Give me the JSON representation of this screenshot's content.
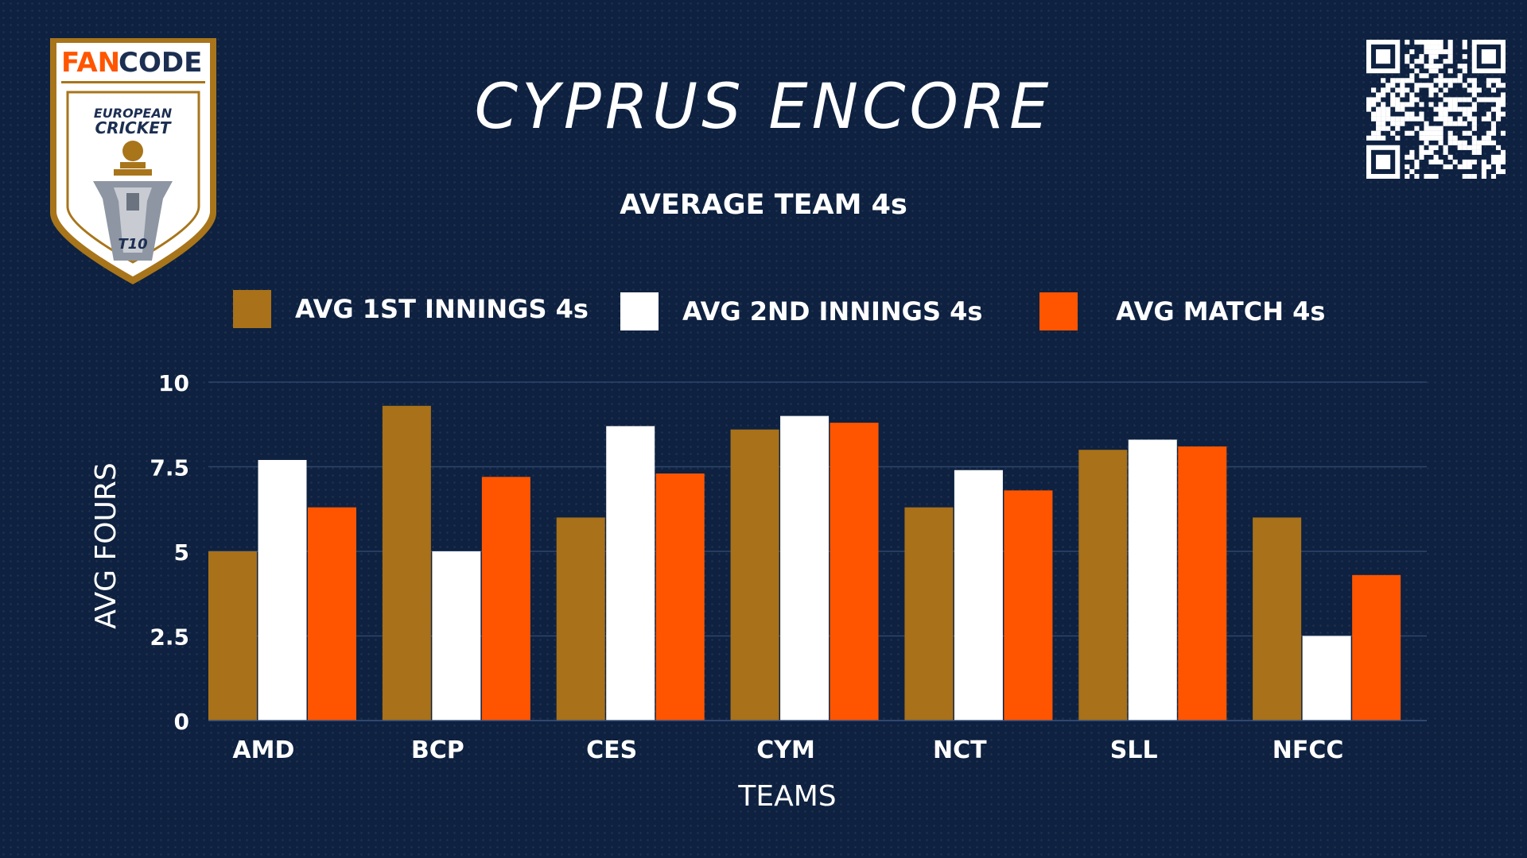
{
  "header": {
    "title": "CYPRUS ENCORE",
    "subtitle": "AVERAGE TEAM 4s"
  },
  "logo": {
    "brand_fan": "FAN",
    "brand_code": "CODE",
    "line1": "EUROPEAN",
    "line2": "CRICKET",
    "badge": "T10",
    "colors": {
      "gold": "#a8751b",
      "orange": "#ff5500",
      "navy": "#0e2140"
    }
  },
  "qr": {
    "icon": "qr-code-icon"
  },
  "chart_data": {
    "type": "bar",
    "categories": [
      "AMD",
      "BCP",
      "CES",
      "CYM",
      "NCT",
      "SLL",
      "NFCC"
    ],
    "series": [
      {
        "name": "AVG 1ST INNINGS 4s",
        "color": "#a8711a",
        "values": [
          5.0,
          9.3,
          6.0,
          8.6,
          6.3,
          8.0,
          6.0
        ]
      },
      {
        "name": "AVG 2ND INNINGS 4s",
        "color": "#ffffff",
        "values": [
          7.7,
          5.0,
          8.7,
          9.0,
          7.4,
          8.3,
          2.5
        ]
      },
      {
        "name": "AVG MATCH 4s",
        "color": "#ff5500",
        "values": [
          6.3,
          7.2,
          7.3,
          8.8,
          6.8,
          8.1,
          4.3
        ]
      }
    ],
    "xlabel": "TEAMS",
    "ylabel": "AVG FOURS",
    "ylim": [
      0,
      10
    ],
    "yticks": [
      "0",
      "2.5",
      "5",
      "7.5",
      "10"
    ],
    "grid": true,
    "legend": "top"
  }
}
